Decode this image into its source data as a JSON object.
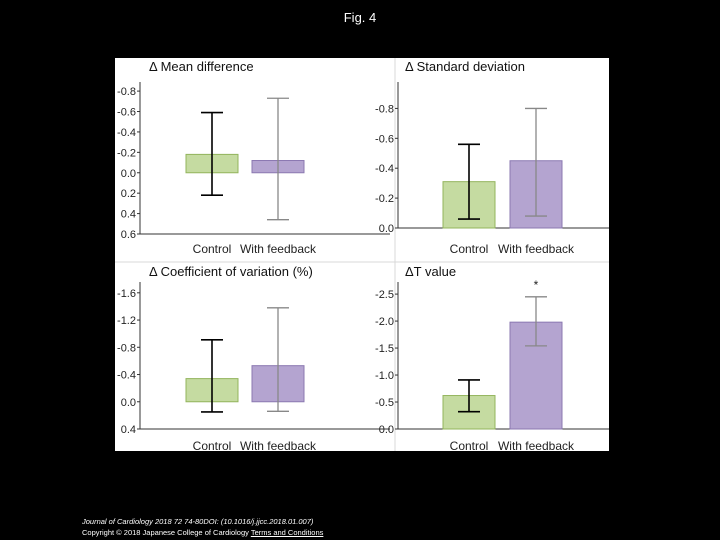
{
  "figure": {
    "title": "Fig. 4"
  },
  "colors": {
    "control": "#c5dba1",
    "control_edge": "#93b45c",
    "feedback": "#b4a4d0",
    "feedback_edge": "#8b78b1",
    "error_control": "#000000",
    "error_feedback": "#888888"
  },
  "chart_data": [
    {
      "type": "bar",
      "title": "Δ Mean difference",
      "categories": [
        "Control",
        "With feedback"
      ],
      "values": [
        -0.18,
        -0.12
      ],
      "error_low": [
        0.22,
        0.46
      ],
      "error_high": [
        -0.59,
        -0.73
      ],
      "ylim": [
        0.6,
        -0.85
      ],
      "ticks": [
        -0.8,
        -0.6,
        -0.4,
        -0.2,
        0.0,
        0.2,
        0.4,
        0.6
      ],
      "tick_labels": [
        "-0.8",
        "-0.6",
        "-0.4",
        "-0.2",
        "0.0",
        "0.2",
        "0.4",
        "0.6"
      ],
      "annotation": ""
    },
    {
      "type": "bar",
      "title": "Δ Standard deviation",
      "categories": [
        "Control",
        "With feedback"
      ],
      "values": [
        -0.31,
        -0.45
      ],
      "error_low": [
        -0.06,
        -0.08
      ],
      "error_high": [
        -0.56,
        -0.8
      ],
      "ylim": [
        0.0,
        -0.95
      ],
      "ticks": [
        -0.8,
        -0.6,
        -0.4,
        -0.2,
        0.0
      ],
      "tick_labels": [
        "-0.8",
        "-0.6",
        "-0.4",
        "-0.2",
        "0.0"
      ],
      "annotation": ""
    },
    {
      "type": "bar",
      "title": "Δ Coefficient of variation (%)",
      "categories": [
        "Control",
        "With feedback"
      ],
      "values": [
        -0.34,
        -0.53
      ],
      "error_low": [
        0.15,
        0.14
      ],
      "error_high": [
        -0.91,
        -1.38
      ],
      "ylim": [
        0.4,
        -1.7
      ],
      "ticks": [
        -1.6,
        -1.2,
        -0.8,
        -0.4,
        0.0,
        0.4
      ],
      "tick_labels": [
        "-1.6",
        "-1.2",
        "-0.8",
        "-0.4",
        "0.0",
        "0.4"
      ],
      "annotation": ""
    },
    {
      "type": "bar",
      "title": "ΔT value",
      "categories": [
        "Control",
        "With feedback"
      ],
      "values": [
        -0.62,
        -1.98
      ],
      "error_low": [
        -0.32,
        -1.54
      ],
      "error_high": [
        -0.91,
        -2.45
      ],
      "ylim": [
        0.0,
        -2.65
      ],
      "ticks": [
        -2.5,
        -2.0,
        -1.5,
        -1.0,
        -0.5,
        0.0
      ],
      "tick_labels": [
        "-2.5",
        "-2.0",
        "-1.5",
        "-1.0",
        "-0.5",
        "0.0"
      ],
      "annotation": "*"
    }
  ],
  "footer": {
    "citation": "Journal of Cardiology 2018 72 74-80DOI: (10.1016/j.jjcc.2018.01.007)",
    "copyright": "Copyright © 2018 Japanese College of Cardiology ",
    "terms_link": "Terms and Conditions"
  }
}
